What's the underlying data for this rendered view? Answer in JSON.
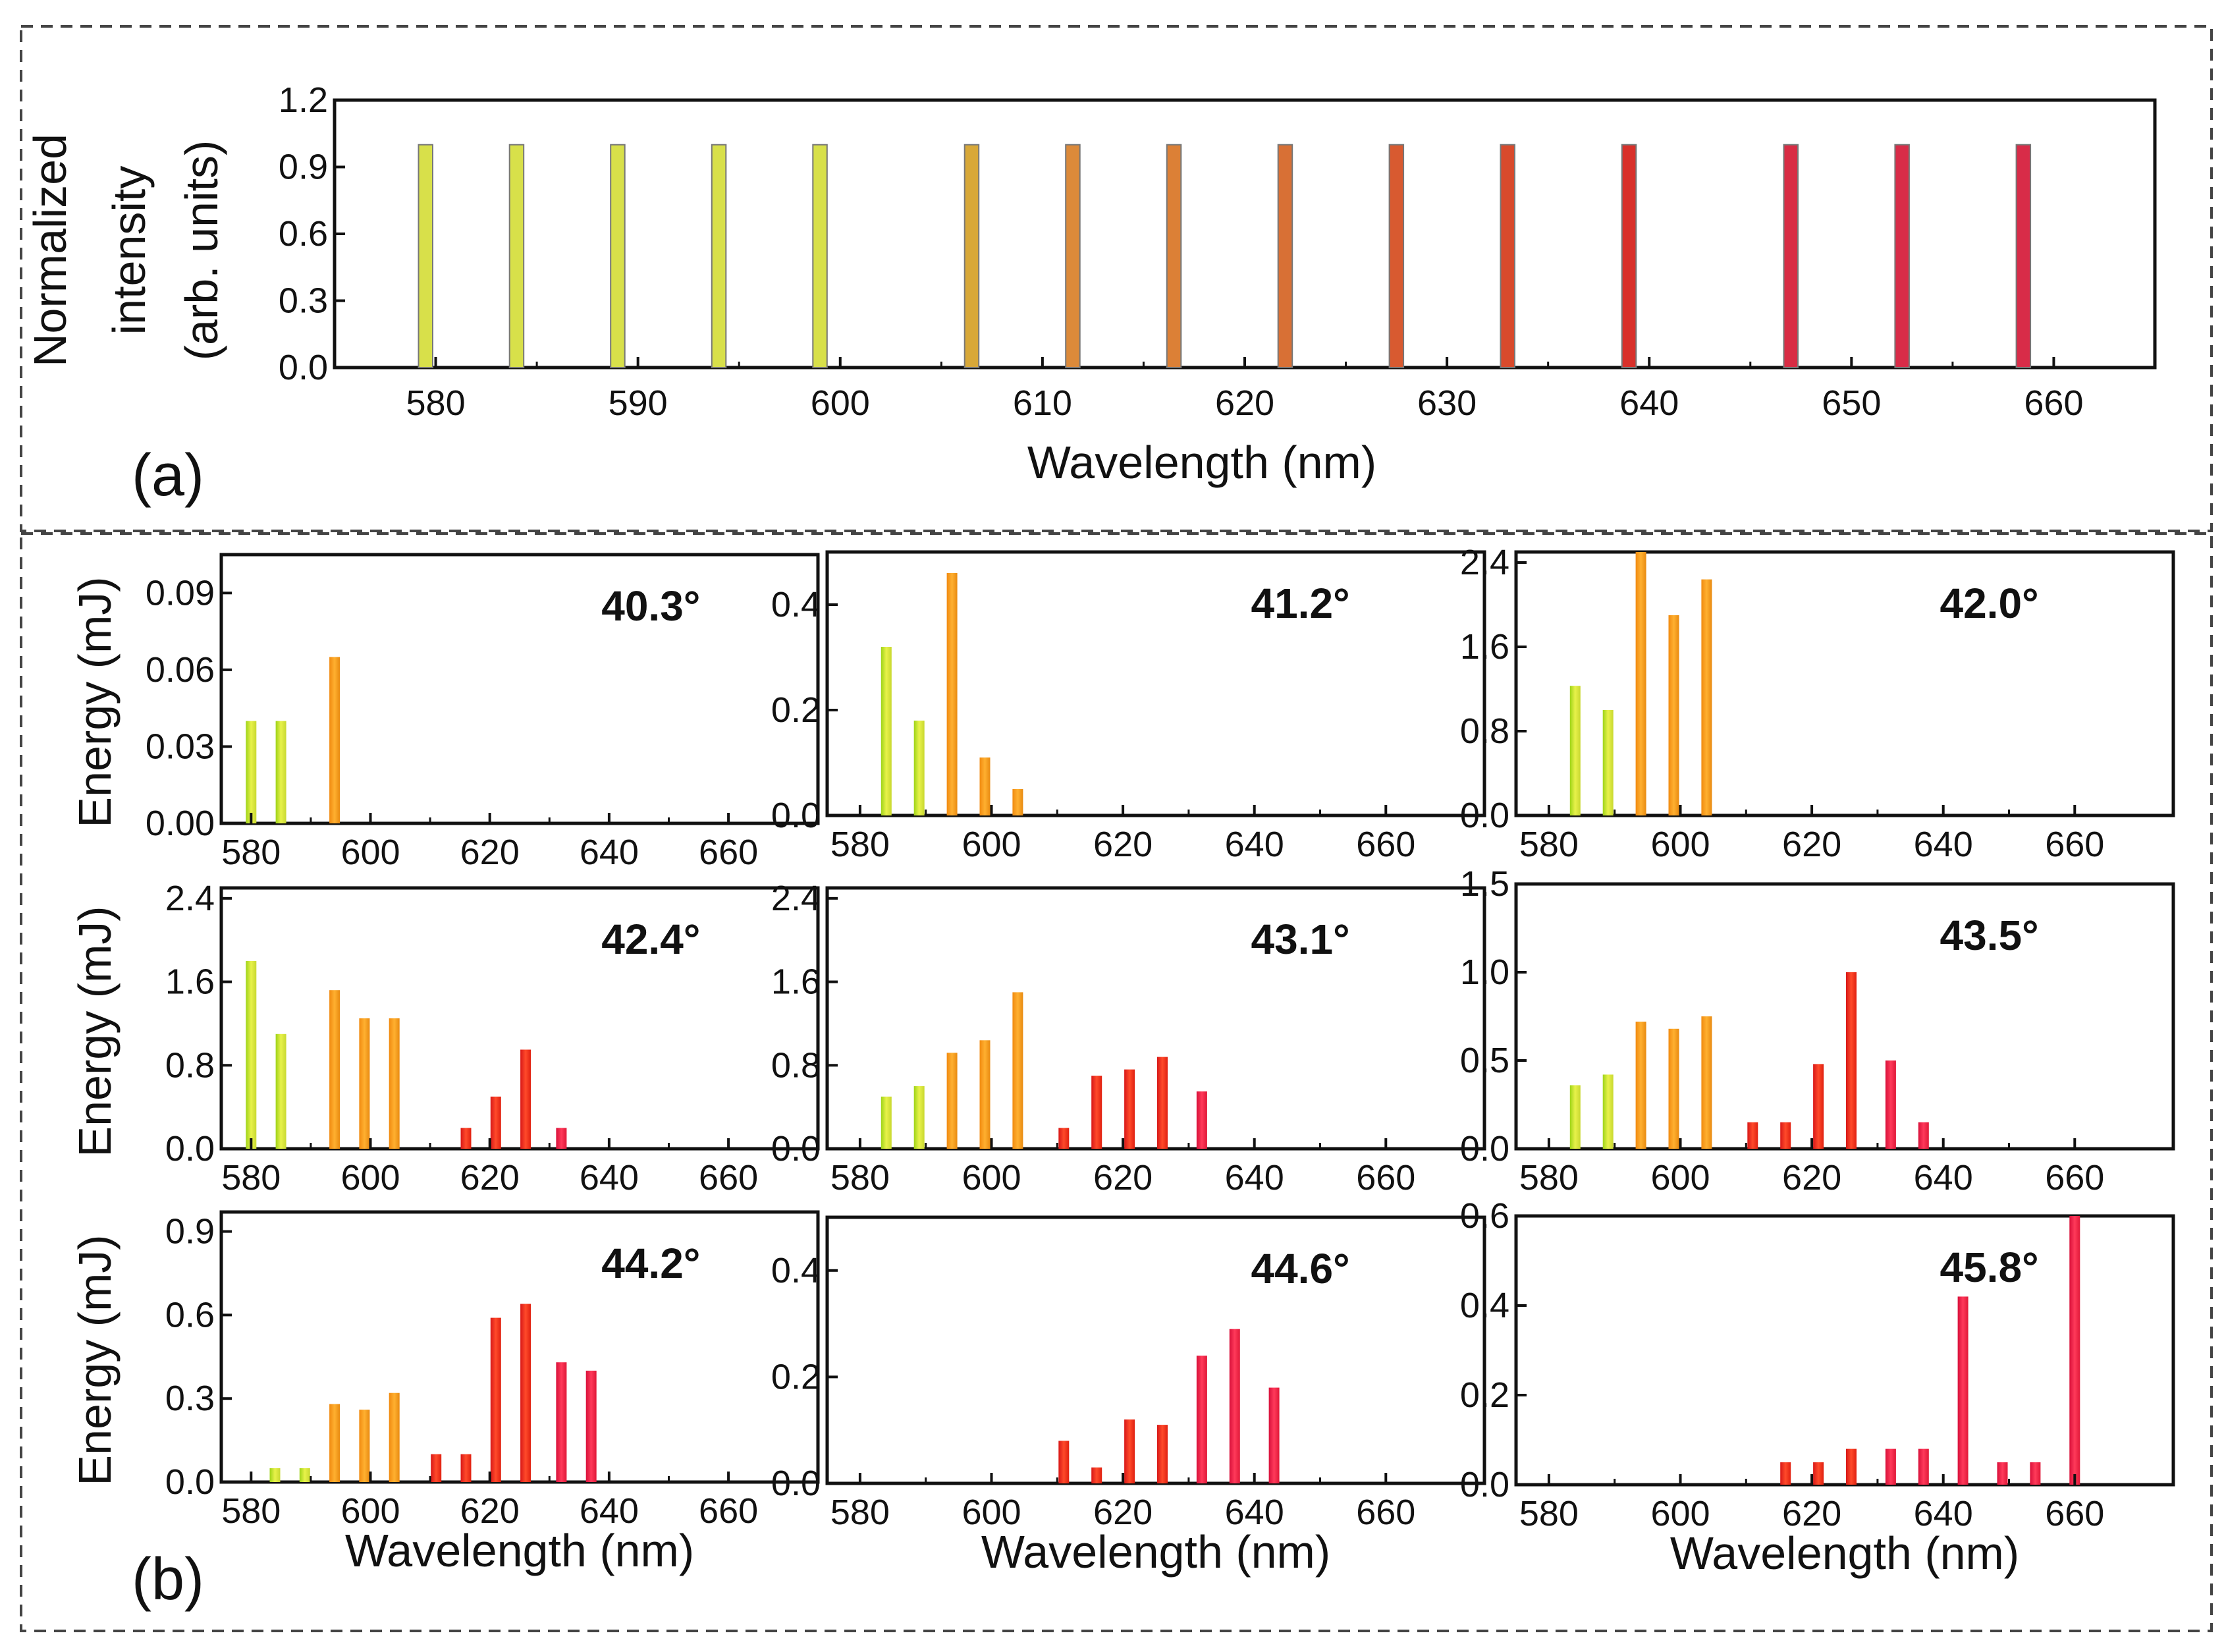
{
  "chart_data": [
    {
      "id": "a",
      "type": "bar",
      "panel_label": "(a)",
      "xlabel": "Wavelength (nm)",
      "ylabel_lines": [
        "Normalized",
        "intensity",
        "(arb. units)"
      ],
      "xlim": [
        575,
        665
      ],
      "ylim": [
        0,
        1.2
      ],
      "xticks": [
        580,
        590,
        600,
        610,
        620,
        630,
        640,
        650,
        660
      ],
      "yticks": [
        "0.0",
        "0.3",
        "0.6",
        "0.9",
        "1.2"
      ],
      "bar_width_nm": 0.7,
      "x": [
        579.5,
        584,
        589,
        594,
        599,
        606.5,
        611.5,
        616.5,
        622,
        627.5,
        633,
        639,
        647,
        652.5,
        658.5
      ],
      "values": [
        1,
        1,
        1,
        1,
        1,
        1,
        1,
        1,
        1,
        1,
        1,
        1,
        1,
        1,
        1
      ],
      "colors": [
        "#d8e04a",
        "#d8e04a",
        "#d8e04a",
        "#d8e04a",
        "#d8e04a",
        "#d8a838",
        "#dc8a3a",
        "#dc8036",
        "#d87035",
        "#d85a30",
        "#d84a2c",
        "#d8302a",
        "#d82c44",
        "#d82c48",
        "#d82c48"
      ]
    },
    {
      "id": "b1",
      "type": "bar",
      "angle": "40.3°",
      "ylabel": "Energy (mJ)",
      "xlabel": "",
      "xlim": [
        575,
        675
      ],
      "ylim": [
        0,
        0.105
      ],
      "xticks": [
        580,
        600,
        620,
        640,
        660
      ],
      "yticks": [
        "0.00",
        "0.03",
        "0.06",
        "0.09"
      ],
      "x": [
        580,
        585,
        594
      ],
      "values": [
        0.04,
        0.04,
        0.065
      ]
    },
    {
      "id": "b2",
      "type": "bar",
      "angle": "41.2°",
      "ylabel": "",
      "xlabel": "",
      "xlim": [
        575,
        675
      ],
      "ylim": [
        0,
        0.5
      ],
      "xticks": [
        580,
        600,
        620,
        640,
        660
      ],
      "yticks": [
        "0.0",
        "0.2",
        "0.4"
      ],
      "x": [
        584,
        589,
        594,
        599,
        604
      ],
      "values": [
        0.32,
        0.18,
        0.46,
        0.11,
        0.05
      ]
    },
    {
      "id": "b3",
      "type": "bar",
      "angle": "42.0°",
      "ylabel": "",
      "xlabel": "",
      "xlim": [
        575,
        675
      ],
      "ylim": [
        0,
        2.5
      ],
      "xticks": [
        580,
        600,
        620,
        640,
        660
      ],
      "yticks": [
        "0.0",
        "0.8",
        "1.6",
        "2.4"
      ],
      "x": [
        584,
        589,
        594,
        599,
        604
      ],
      "values": [
        1.23,
        1.0,
        2.5,
        1.9,
        2.24
      ]
    },
    {
      "id": "b4",
      "type": "bar",
      "angle": "42.4°",
      "ylabel": "Energy (mJ)",
      "xlabel": "",
      "xlim": [
        575,
        675
      ],
      "ylim": [
        0,
        2.5
      ],
      "xticks": [
        580,
        600,
        620,
        640,
        660
      ],
      "yticks": [
        "0.0",
        "0.8",
        "1.6",
        "2.4"
      ],
      "x": [
        580,
        585,
        594,
        599,
        604,
        616,
        621,
        626,
        632
      ],
      "values": [
        1.8,
        1.1,
        1.52,
        1.25,
        1.25,
        0.2,
        0.5,
        0.95,
        0.2
      ]
    },
    {
      "id": "b5",
      "type": "bar",
      "angle": "43.1°",
      "ylabel": "",
      "xlabel": "",
      "xlim": [
        575,
        675
      ],
      "ylim": [
        0,
        2.5
      ],
      "xticks": [
        580,
        600,
        620,
        640,
        660
      ],
      "yticks": [
        "0.0",
        "0.8",
        "1.6",
        "2.4"
      ],
      "x": [
        584,
        589,
        594,
        599,
        604,
        611,
        616,
        621,
        626,
        632
      ],
      "values": [
        0.5,
        0.6,
        0.92,
        1.04,
        1.5,
        0.2,
        0.7,
        0.76,
        0.88,
        0.55
      ]
    },
    {
      "id": "b6",
      "type": "bar",
      "angle": "43.5°",
      "ylabel": "",
      "xlabel": "",
      "xlim": [
        575,
        675
      ],
      "ylim": [
        0,
        1.5
      ],
      "xticks": [
        580,
        600,
        620,
        640,
        660
      ],
      "yticks": [
        "0.0",
        "0.5",
        "1.0",
        "1.5"
      ],
      "x": [
        584,
        589,
        594,
        599,
        604,
        611,
        616,
        621,
        626,
        632,
        637
      ],
      "values": [
        0.36,
        0.42,
        0.72,
        0.68,
        0.75,
        0.15,
        0.15,
        0.48,
        1.0,
        0.5,
        0.15
      ]
    },
    {
      "id": "b7",
      "type": "bar",
      "angle": "44.2°",
      "ylabel": "Energy (mJ)",
      "xlabel": "Wavelength (nm)",
      "xlim": [
        575,
        675
      ],
      "ylim": [
        0,
        0.97
      ],
      "xticks": [
        580,
        600,
        620,
        640,
        660
      ],
      "yticks": [
        "0.0",
        "0.3",
        "0.6",
        "0.9"
      ],
      "x": [
        584,
        589,
        594,
        599,
        604,
        611,
        616,
        621,
        626,
        632,
        637
      ],
      "values": [
        0.05,
        0.05,
        0.28,
        0.26,
        0.32,
        0.1,
        0.1,
        0.59,
        0.64,
        0.43,
        0.4
      ]
    },
    {
      "id": "b8",
      "type": "bar",
      "angle": "44.6°",
      "ylabel": "",
      "xlabel": "Wavelength (nm)",
      "xlim": [
        575,
        675
      ],
      "ylim": [
        0,
        0.5
      ],
      "xticks": [
        580,
        600,
        620,
        640,
        660
      ],
      "yticks": [
        "0.0",
        "0.2",
        "0.4"
      ],
      "x": [
        611,
        616,
        621,
        626,
        632,
        637,
        643
      ],
      "values": [
        0.08,
        0.03,
        0.12,
        0.11,
        0.24,
        0.29,
        0.18
      ]
    },
    {
      "id": "b9",
      "type": "bar",
      "angle": "45.8°",
      "ylabel": "",
      "xlabel": "Wavelength (nm)",
      "xlim": [
        575,
        675
      ],
      "ylim": [
        0,
        0.6
      ],
      "xticks": [
        580,
        600,
        620,
        640,
        660
      ],
      "yticks": [
        "0.0",
        "0.2",
        "0.4",
        "0.6"
      ],
      "x": [
        616,
        621,
        626,
        632,
        637,
        643,
        649,
        654,
        660
      ],
      "values": [
        0.05,
        0.05,
        0.08,
        0.08,
        0.08,
        0.42,
        0.05,
        0.05,
        0.6
      ]
    }
  ],
  "panel_b_label": "(b)"
}
